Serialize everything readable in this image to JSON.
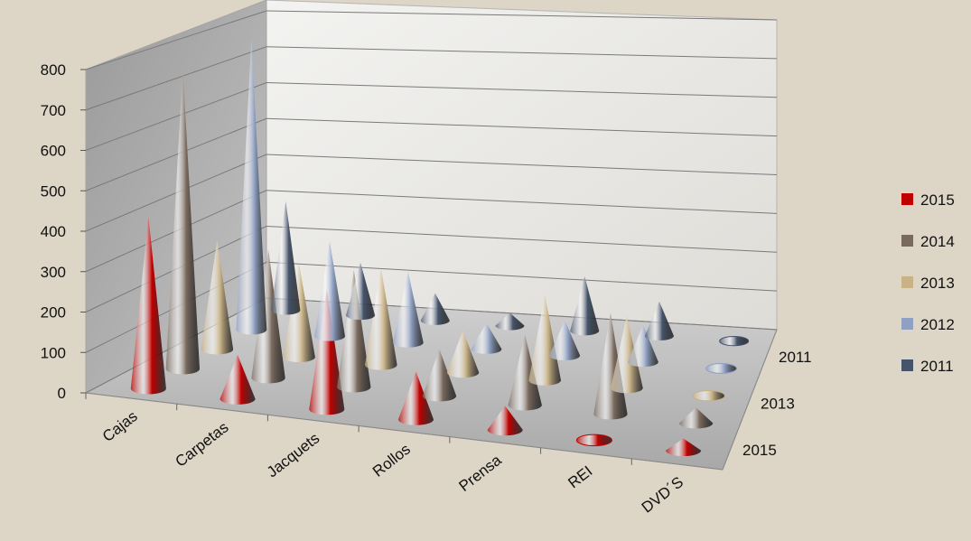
{
  "chart_data": {
    "type": "bar",
    "subtype": "3d-cone",
    "title": "",
    "categories": [
      "Cajas",
      "Carpetas",
      "Jacquets",
      "Rollos",
      "Prensa",
      "REI",
      "DVD´S"
    ],
    "depth_axis_ticks": [
      "2011",
      "2013",
      "2015"
    ],
    "yticks": [
      "0",
      "100",
      "200",
      "300",
      "400",
      "500",
      "600",
      "700",
      "800"
    ],
    "ylim": [
      0,
      800
    ],
    "gridlines": true,
    "legend_position": "right",
    "series": [
      {
        "name": "2015",
        "color": "#c00000",
        "values": [
          430,
          110,
          300,
          120,
          60,
          0,
          30
        ]
      },
      {
        "name": "2014",
        "color": "#7a6a5e",
        "values": [
          770,
          330,
          300,
          120,
          180,
          260,
          40
        ]
      },
      {
        "name": "2013",
        "color": "#c8b286",
        "values": [
          285,
          245,
          255,
          110,
          225,
          190,
          0
        ]
      },
      {
        "name": "2012",
        "color": "#8fa0c2",
        "values": [
          780,
          255,
          190,
          70,
          95,
          100,
          0
        ]
      },
      {
        "name": "2011",
        "color": "#46546b",
        "values": [
          300,
          145,
          75,
          35,
          150,
          95,
          0
        ]
      }
    ]
  }
}
